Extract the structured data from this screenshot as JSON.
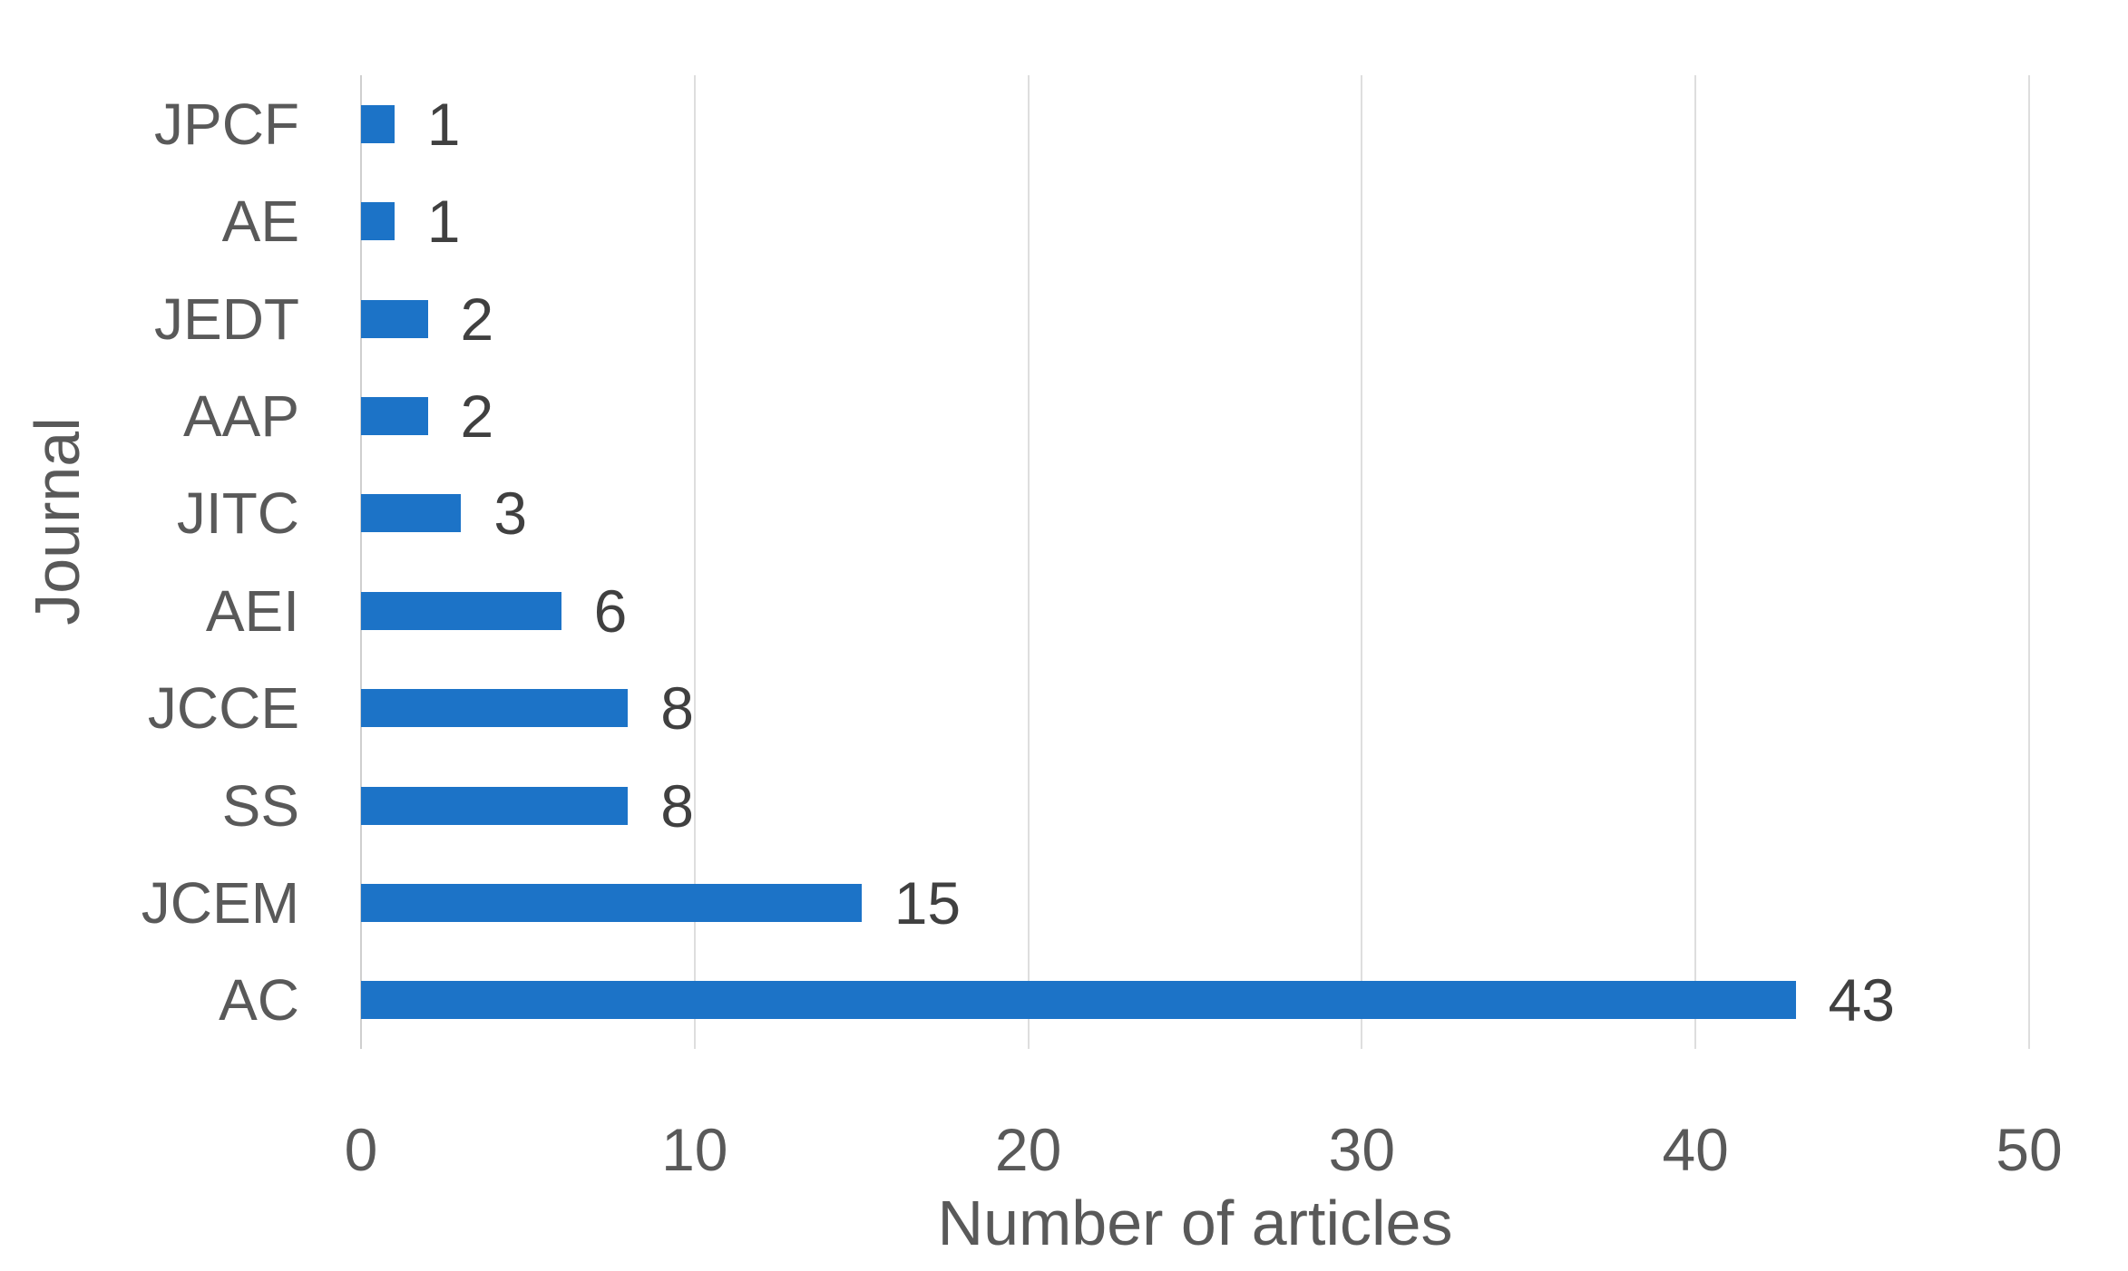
{
  "chart_data": {
    "type": "bar",
    "orientation": "horizontal",
    "xlabel": "Number of articles",
    "ylabel": "Journal",
    "categories": [
      "JPCF",
      "AE",
      "JEDT",
      "AAP",
      "JITC",
      "AEI",
      "JCCE",
      "SS",
      "JCEM",
      "AC"
    ],
    "values": [
      1,
      1,
      2,
      2,
      3,
      6,
      8,
      8,
      15,
      43
    ],
    "xlim": [
      0,
      50
    ],
    "xticks": [
      0,
      10,
      20,
      30,
      40,
      50
    ],
    "grid": "vertical gridlines only",
    "legend": "none",
    "colors": {
      "bar": "#1C73C7",
      "axis_text": "#595959",
      "data_label_text": "#404040",
      "gridline": "#DEDEDE",
      "axis_line": "#CFCFCF",
      "background": "#FFFFFF"
    }
  }
}
